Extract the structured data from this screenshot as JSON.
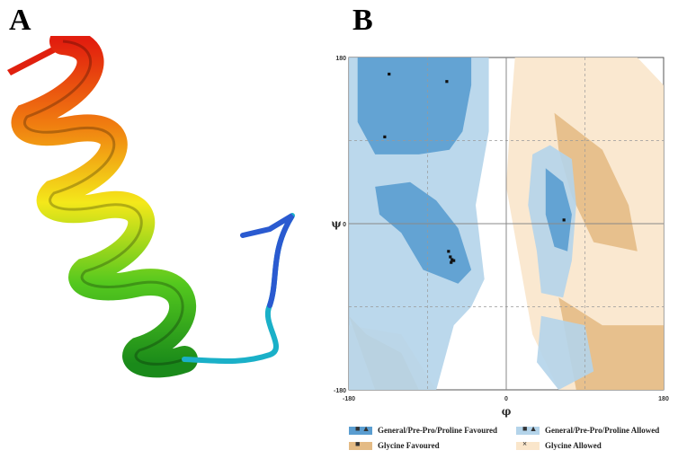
{
  "panels": {
    "a_label": "A",
    "b_label": "B"
  },
  "ramachandran": {
    "axis_symbols": {
      "x": "φ",
      "y": "ψ"
    },
    "ticks": {
      "x": [
        "-180",
        "0",
        "180"
      ],
      "y": [
        "180",
        "0",
        "-180"
      ]
    },
    "colors": {
      "general_favoured": "#5a9dd0",
      "general_allowed": "#b4d4ea",
      "glycine_favoured": "#e4bb85",
      "glycine_allowed": "#fae6cb"
    },
    "legend": [
      {
        "label": "General/Pre-Pro/Proline Favoured",
        "marks": "■ ▲",
        "color": "#5a9dd0"
      },
      {
        "label": "General/Pre-Pro/Proline Allowed",
        "marks": "■ ▲",
        "color": "#b4d4ea"
      },
      {
        "label": "Glycine Favoured",
        "marks": "■",
        "color": "#e4bb85"
      },
      {
        "label": "Glycine Allowed",
        "marks": "×",
        "color": "#fae6cb"
      }
    ]
  },
  "chart_data": {
    "type": "scatter",
    "title": "",
    "xlabel": "φ",
    "ylabel": "ψ",
    "xlim": [
      -180,
      180
    ],
    "ylim": [
      -180,
      180
    ],
    "grid": true,
    "series": [
      {
        "points": [
          [
            -134,
            162
          ],
          [
            -68,
            154
          ],
          [
            -139,
            94
          ],
          [
            -66,
            -30
          ],
          [
            -64,
            -36
          ],
          [
            -62,
            -39
          ],
          [
            -60,
            -40
          ],
          [
            -63,
            -42
          ],
          [
            66,
            4
          ]
        ]
      }
    ]
  }
}
